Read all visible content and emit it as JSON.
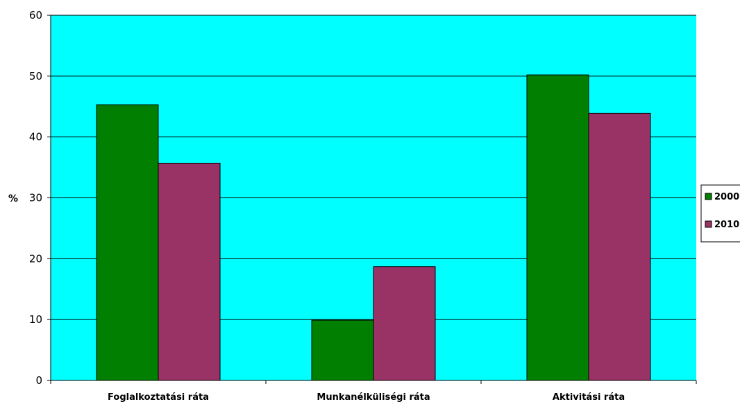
{
  "chart_data": {
    "type": "bar",
    "categories": [
      "Foglalkoztatási ráta",
      "Munkanélküliségi ráta",
      "Aktivitási ráta"
    ],
    "series": [
      {
        "name": "2000",
        "color": "#007F00",
        "values": [
          45.3,
          9.9,
          50.2
        ]
      },
      {
        "name": "2010",
        "color": "#993366",
        "values": [
          35.7,
          18.7,
          43.9
        ]
      }
    ],
    "ylabel": "%",
    "ylim": [
      0,
      60
    ],
    "yticks": [
      0,
      10,
      20,
      30,
      40,
      50,
      60
    ],
    "plot_background": "#00FFFF",
    "grid": true,
    "legend_position": "right"
  }
}
